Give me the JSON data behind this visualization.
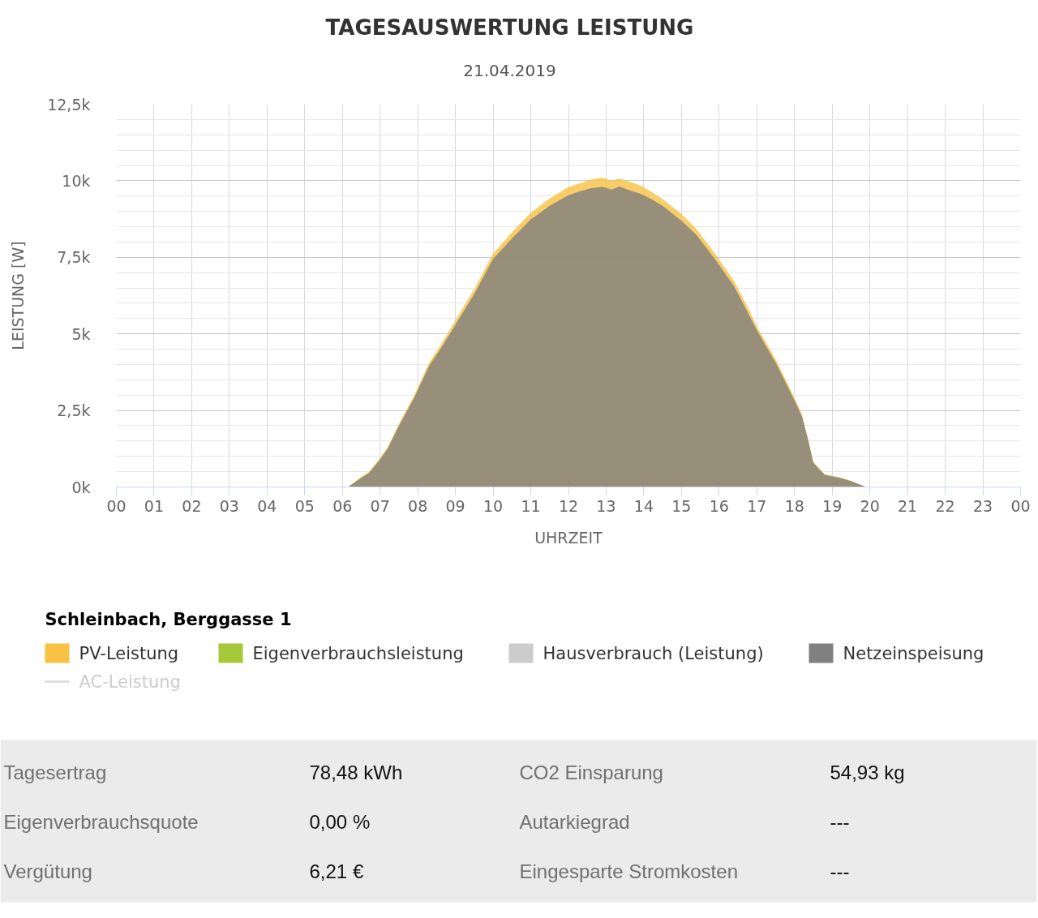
{
  "chart_data": {
    "type": "area",
    "title": "TAGESAUSWERTUNG LEISTUNG",
    "subtitle": "21.04.2019",
    "xlabel": "UHRZEIT",
    "ylabel": "LEISTUNG [W]",
    "legend_title": "Schleinbach, Berggasse 1",
    "x": [
      6.15,
      6.5,
      6.7,
      7.0,
      7.2,
      7.5,
      7.9,
      8.3,
      8.6,
      8.9,
      9.2,
      9.5,
      10.0,
      10.5,
      11.0,
      11.5,
      12.0,
      12.3,
      12.6,
      12.9,
      13.15,
      13.35,
      13.6,
      13.9,
      14.2,
      14.5,
      15.0,
      15.4,
      15.9,
      16.4,
      16.85,
      17.0,
      17.5,
      18.0,
      18.2,
      18.35,
      18.5,
      18.8,
      19.2,
      19.5,
      19.9
    ],
    "series": [
      {
        "name": "PV-Leistung",
        "color": "#f8c244",
        "values": [
          0,
          330,
          490,
          950,
          1300,
          2060,
          2980,
          4050,
          4620,
          5230,
          5850,
          6460,
          7620,
          8320,
          8960,
          9420,
          9790,
          9920,
          10040,
          10100,
          10000,
          10070,
          9980,
          9850,
          9640,
          9400,
          8910,
          8420,
          7600,
          6720,
          5650,
          5240,
          4170,
          2910,
          2360,
          1630,
          820,
          420,
          320,
          200,
          0
        ]
      },
      {
        "name": "Eigenverbrauchsleistung",
        "color": "#a5c83a",
        "values": [
          null,
          null,
          null,
          null,
          null,
          null,
          null,
          null,
          null,
          null,
          null,
          null,
          null,
          null,
          null,
          null,
          null,
          null,
          null,
          null,
          null,
          null,
          null,
          null,
          null,
          null,
          null,
          null,
          null,
          null,
          null,
          null,
          null,
          null,
          null,
          null,
          null,
          null,
          null,
          null,
          null
        ]
      },
      {
        "name": "Hausverbrauch (Leistung)",
        "color": "#cccccc",
        "values": [
          null,
          null,
          null,
          null,
          null,
          null,
          null,
          null,
          null,
          null,
          null,
          null,
          null,
          null,
          null,
          null,
          null,
          null,
          null,
          null,
          null,
          null,
          null,
          null,
          null,
          null,
          null,
          null,
          null,
          null,
          null,
          null,
          null,
          null,
          null,
          null,
          null,
          null,
          null,
          null,
          null
        ]
      },
      {
        "name": "Netzeinspeisung",
        "color": "#808080",
        "values": [
          0,
          300,
          450,
          900,
          1250,
          2000,
          2900,
          3950,
          4500,
          5100,
          5700,
          6300,
          7450,
          8120,
          8740,
          9180,
          9530,
          9650,
          9760,
          9800,
          9710,
          9810,
          9700,
          9580,
          9400,
          9180,
          8690,
          8230,
          7420,
          6550,
          5480,
          5120,
          4060,
          2830,
          2300,
          1590,
          790,
          400,
          300,
          190,
          0
        ]
      },
      {
        "name": "AC-Leistung",
        "type": "line",
        "color": "#cccccc",
        "values": [
          null,
          null,
          null,
          null,
          null,
          null,
          null,
          null,
          null,
          null,
          null,
          null,
          null,
          null,
          null,
          null,
          null,
          null,
          null,
          null,
          null,
          null,
          null,
          null,
          null,
          null,
          null,
          null,
          null,
          null,
          null,
          null,
          null,
          null,
          null,
          null,
          null,
          null,
          null,
          null,
          null
        ]
      }
    ],
    "xlim": [
      0,
      24
    ],
    "ylim": [
      0,
      12500
    ],
    "xticks": [
      {
        "value": 0,
        "label": "00"
      },
      {
        "value": 1,
        "label": "01"
      },
      {
        "value": 2,
        "label": "02"
      },
      {
        "value": 3,
        "label": "03"
      },
      {
        "value": 4,
        "label": "04"
      },
      {
        "value": 5,
        "label": "05"
      },
      {
        "value": 6,
        "label": "06"
      },
      {
        "value": 7,
        "label": "07"
      },
      {
        "value": 8,
        "label": "08"
      },
      {
        "value": 9,
        "label": "09"
      },
      {
        "value": 10,
        "label": "10"
      },
      {
        "value": 11,
        "label": "11"
      },
      {
        "value": 12,
        "label": "12"
      },
      {
        "value": 13,
        "label": "13"
      },
      {
        "value": 14,
        "label": "14"
      },
      {
        "value": 15,
        "label": "15"
      },
      {
        "value": 16,
        "label": "16"
      },
      {
        "value": 17,
        "label": "17"
      },
      {
        "value": 18,
        "label": "18"
      },
      {
        "value": 19,
        "label": "19"
      },
      {
        "value": 20,
        "label": "20"
      },
      {
        "value": 21,
        "label": "21"
      },
      {
        "value": 22,
        "label": "22"
      },
      {
        "value": 23,
        "label": "23"
      },
      {
        "value": 24,
        "label": "00"
      }
    ],
    "yticks": [
      {
        "value": 0,
        "label": "0k"
      },
      {
        "value": 500,
        "label": null
      },
      {
        "value": 1000,
        "label": null
      },
      {
        "value": 1500,
        "label": null
      },
      {
        "value": 2000,
        "label": null
      },
      {
        "value": 2500,
        "label": "2,5k"
      },
      {
        "value": 3000,
        "label": null
      },
      {
        "value": 3500,
        "label": null
      },
      {
        "value": 4000,
        "label": null
      },
      {
        "value": 4500,
        "label": null
      },
      {
        "value": 5000,
        "label": "5k"
      },
      {
        "value": 5500,
        "label": null
      },
      {
        "value": 6000,
        "label": null
      },
      {
        "value": 6500,
        "label": null
      },
      {
        "value": 7000,
        "label": null
      },
      {
        "value": 7500,
        "label": "7,5k"
      },
      {
        "value": 8000,
        "label": null
      },
      {
        "value": 8500,
        "label": null
      },
      {
        "value": 9000,
        "label": null
      },
      {
        "value": 9500,
        "label": null
      },
      {
        "value": 10000,
        "label": "10k"
      },
      {
        "value": 10500,
        "label": null
      },
      {
        "value": 11000,
        "label": null
      },
      {
        "value": 11500,
        "label": null
      },
      {
        "value": 12000,
        "label": null
      },
      {
        "value": 12500,
        "label": "12,5k"
      }
    ],
    "grid": true,
    "legend": "bottom",
    "annotations": [
      "Tagesertrag",
      "78,48 kWh",
      "CO2 Einsparung",
      "54,93 kg",
      "Eigenverbrauchsquote",
      "0,00 %",
      "Autarkiegrad",
      "---",
      "Vergütung",
      "6,21 €",
      "Eingesparte Stromkosten",
      "---"
    ]
  }
}
